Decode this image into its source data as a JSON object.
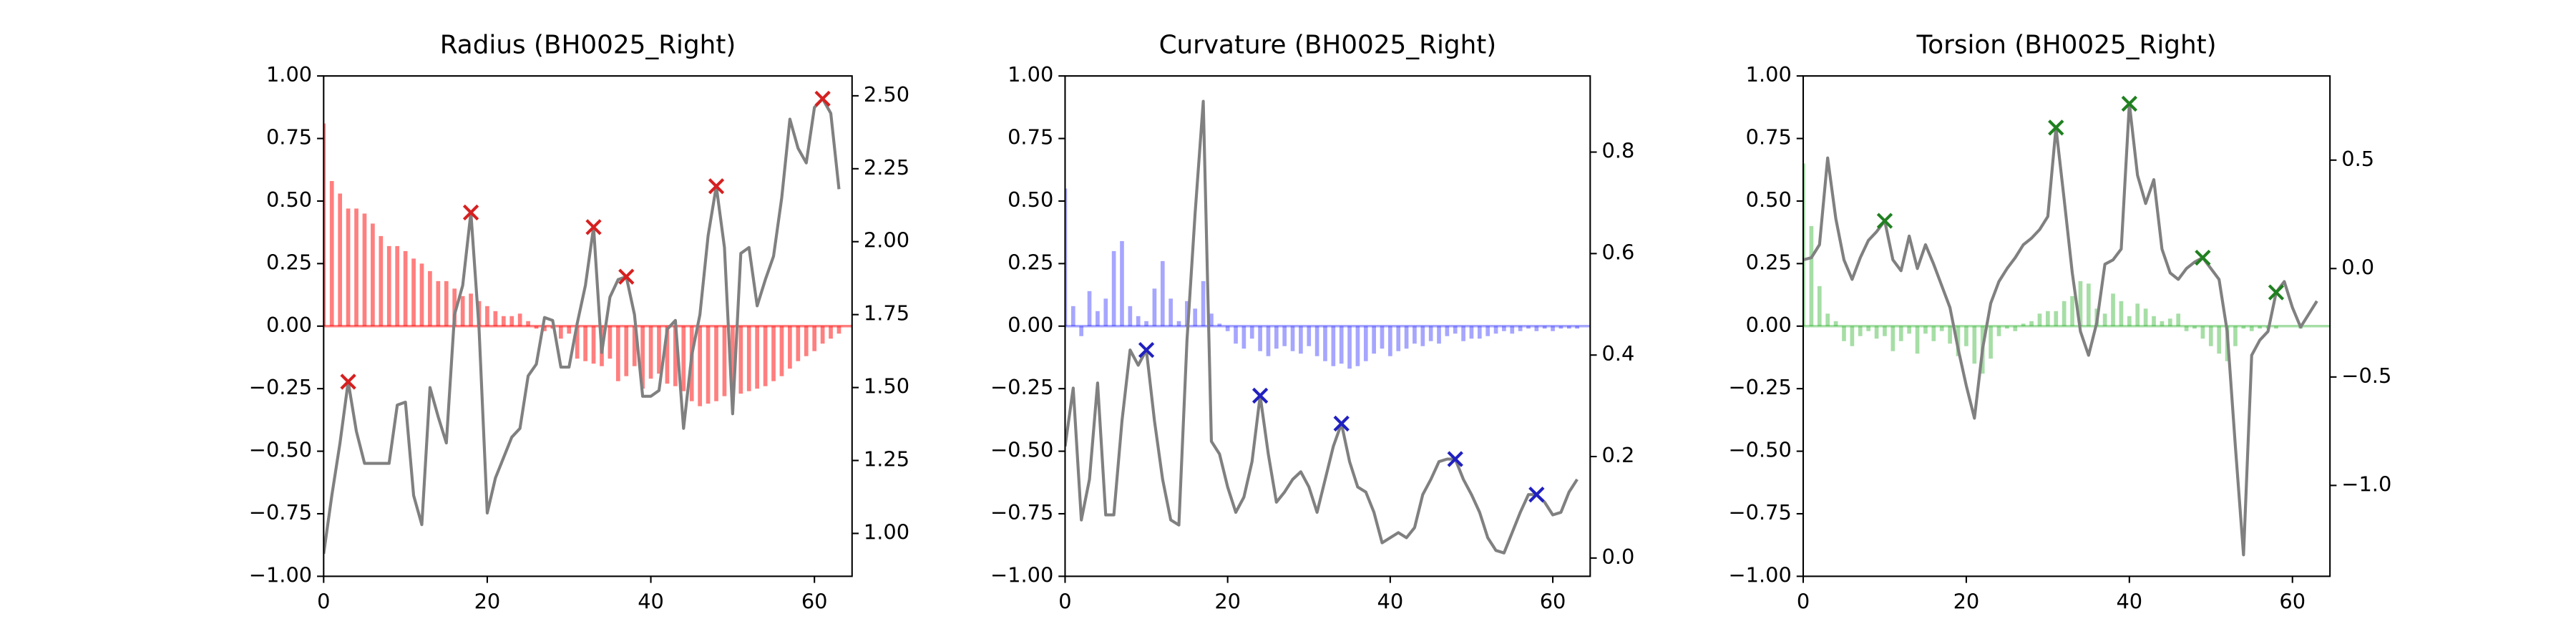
{
  "chart_data": [
    {
      "type": "combo",
      "title": "Radius (BH0025_Right)",
      "x": [
        0,
        1,
        2,
        3,
        4,
        5,
        6,
        7,
        8,
        9,
        10,
        11,
        12,
        13,
        14,
        15,
        16,
        17,
        18,
        19,
        20,
        21,
        22,
        23,
        24,
        25,
        26,
        27,
        28,
        29,
        30,
        31,
        32,
        33,
        34,
        35,
        36,
        37,
        38,
        39,
        40,
        41,
        42,
        43,
        44,
        45,
        46,
        47,
        48,
        49,
        50,
        51,
        52,
        53,
        54,
        55,
        56,
        57,
        58,
        59,
        60,
        61,
        62,
        63
      ],
      "xlim": [
        0,
        64.6
      ],
      "xticks": [
        0,
        20,
        40,
        60
      ],
      "ylim": [
        -1,
        1
      ],
      "yticks": [
        {
          "value": -1,
          "label": "−1.00"
        },
        {
          "value": -0.75,
          "label": "−0.75"
        },
        {
          "value": -0.5,
          "label": "−0.50"
        },
        {
          "value": -0.25,
          "label": "−0.25"
        },
        {
          "value": 0,
          "label": "0.00"
        },
        {
          "value": 0.25,
          "label": "0.25"
        },
        {
          "value": 0.5,
          "label": "0.50"
        },
        {
          "value": 0.75,
          "label": "0.75"
        },
        {
          "value": 1,
          "label": "1.00"
        }
      ],
      "y2lim": [
        0.853,
        2.568
      ],
      "y2ticks": [
        {
          "value": 1,
          "label": "1.00"
        },
        {
          "value": 1.25,
          "label": "1.25"
        },
        {
          "value": 1.5,
          "label": "1.50"
        },
        {
          "value": 1.75,
          "label": "1.75"
        },
        {
          "value": 2,
          "label": "2.00"
        },
        {
          "value": 2.25,
          "label": "2.25"
        },
        {
          "value": 2.5,
          "label": "2.50"
        }
      ],
      "series": [
        {
          "type": "bar",
          "color": "#ff0000",
          "alpha": 0.5,
          "values": [
            0.81,
            0.58,
            0.53,
            0.47,
            0.47,
            0.45,
            0.41,
            0.36,
            0.32,
            0.32,
            0.3,
            0.27,
            0.25,
            0.22,
            0.18,
            0.18,
            0.15,
            0.12,
            0.13,
            0.1,
            0.08,
            0.06,
            0.04,
            0.04,
            0.05,
            0.02,
            -0.01,
            -0.02,
            -0.01,
            -0.05,
            -0.03,
            -0.13,
            -0.14,
            -0.15,
            -0.16,
            -0.13,
            -0.22,
            -0.2,
            -0.16,
            -0.25,
            -0.21,
            -0.19,
            -0.23,
            -0.24,
            -0.26,
            -0.3,
            -0.32,
            -0.31,
            -0.3,
            -0.28,
            -0.28,
            -0.27,
            -0.26,
            -0.25,
            -0.24,
            -0.22,
            -0.2,
            -0.17,
            -0.14,
            -0.12,
            -0.1,
            -0.07,
            -0.05,
            -0.03
          ]
        },
        {
          "type": "line",
          "axis": "y2",
          "color": "#808080",
          "values": [
            0.93,
            1.13,
            1.31,
            1.52,
            1.35,
            1.24,
            1.24,
            1.24,
            1.24,
            1.44,
            1.45,
            1.13,
            1.03,
            1.5,
            1.4,
            1.31,
            1.75,
            1.85,
            2.1,
            1.7,
            1.07,
            1.19,
            1.26,
            1.33,
            1.36,
            1.54,
            1.58,
            1.74,
            1.73,
            1.57,
            1.57,
            1.72,
            1.85,
            2.05,
            1.62,
            1.81,
            1.87,
            1.88,
            1.75,
            1.47,
            1.47,
            1.49,
            1.7,
            1.73,
            1.36,
            1.61,
            1.75,
            2.02,
            2.19,
            1.98,
            1.41,
            1.96,
            1.98,
            1.78,
            1.87,
            1.95,
            2.15,
            2.42,
            2.32,
            2.27,
            2.46,
            2.49,
            2.44,
            2.18
          ]
        },
        {
          "type": "marker",
          "axis": "y2",
          "color": "#d62020",
          "x": [
            3,
            18,
            33,
            37,
            48,
            61
          ],
          "values": [
            1.52,
            2.1,
            2.05,
            1.88,
            2.19,
            2.49
          ]
        }
      ]
    },
    {
      "type": "combo",
      "title": "Curvature (BH0025_Right)",
      "x": [
        0,
        1,
        2,
        3,
        4,
        5,
        6,
        7,
        8,
        9,
        10,
        11,
        12,
        13,
        14,
        15,
        16,
        17,
        18,
        19,
        20,
        21,
        22,
        23,
        24,
        25,
        26,
        27,
        28,
        29,
        30,
        31,
        32,
        33,
        34,
        35,
        36,
        37,
        38,
        39,
        40,
        41,
        42,
        43,
        44,
        45,
        46,
        47,
        48,
        49,
        50,
        51,
        52,
        53,
        54,
        55,
        56,
        57,
        58,
        59,
        60,
        61,
        62,
        63
      ],
      "xlim": [
        0,
        64.6
      ],
      "xticks": [
        0,
        20,
        40,
        60
      ],
      "ylim": [
        -1,
        1
      ],
      "yticks": [
        {
          "value": -1,
          "label": "−1.00"
        },
        {
          "value": -0.75,
          "label": "−0.75"
        },
        {
          "value": -0.5,
          "label": "−0.50"
        },
        {
          "value": -0.25,
          "label": "−0.25"
        },
        {
          "value": 0,
          "label": "0.00"
        },
        {
          "value": 0.25,
          "label": "0.25"
        },
        {
          "value": 0.5,
          "label": "0.50"
        },
        {
          "value": 0.75,
          "label": "0.75"
        },
        {
          "value": 1,
          "label": "1.00"
        }
      ],
      "y2lim": [
        -0.036,
        0.95
      ],
      "y2ticks": [
        {
          "value": 0,
          "label": "0.0"
        },
        {
          "value": 0.2,
          "label": "0.2"
        },
        {
          "value": 0.4,
          "label": "0.4"
        },
        {
          "value": 0.6,
          "label": "0.6"
        },
        {
          "value": 0.8,
          "label": "0.8"
        }
      ],
      "series": [
        {
          "type": "bar",
          "color": "#0000ff",
          "alpha": 0.35,
          "values": [
            0.55,
            0.08,
            -0.04,
            0.14,
            0.06,
            0.11,
            0.3,
            0.34,
            0.08,
            0.04,
            0.02,
            0.15,
            0.26,
            0.11,
            0.02,
            0.1,
            0.07,
            0.18,
            0.05,
            0.01,
            -0.02,
            -0.07,
            -0.09,
            -0.05,
            -0.1,
            -0.12,
            -0.09,
            -0.08,
            -0.1,
            -0.11,
            -0.08,
            -0.12,
            -0.14,
            -0.16,
            -0.15,
            -0.17,
            -0.16,
            -0.14,
            -0.11,
            -0.09,
            -0.12,
            -0.1,
            -0.09,
            -0.07,
            -0.08,
            -0.06,
            -0.07,
            -0.04,
            -0.03,
            -0.06,
            -0.05,
            -0.05,
            -0.04,
            -0.03,
            -0.02,
            -0.03,
            -0.02,
            -0.01,
            -0.02,
            -0.01,
            -0.02,
            -0.01,
            -0.01,
            -0.01
          ]
        },
        {
          "type": "line",
          "axis": "y2",
          "color": "#808080",
          "values": [
            0.22,
            0.335,
            0.075,
            0.155,
            0.345,
            0.085,
            0.085,
            0.27,
            0.41,
            0.38,
            0.41,
            0.27,
            0.155,
            0.075,
            0.065,
            0.43,
            0.68,
            0.9,
            0.23,
            0.205,
            0.14,
            0.09,
            0.12,
            0.19,
            0.32,
            0.205,
            0.11,
            0.13,
            0.155,
            0.17,
            0.14,
            0.09,
            0.155,
            0.22,
            0.265,
            0.19,
            0.14,
            0.13,
            0.09,
            0.03,
            0.04,
            0.05,
            0.04,
            0.06,
            0.125,
            0.155,
            0.19,
            0.195,
            0.195,
            0.155,
            0.125,
            0.09,
            0.04,
            0.015,
            0.01,
            0.05,
            0.09,
            0.125,
            0.125,
            0.11,
            0.085,
            0.09,
            0.13,
            0.155
          ]
        },
        {
          "type": "marker",
          "axis": "y2",
          "color": "#2020c0",
          "x": [
            10,
            24,
            34,
            48,
            58
          ],
          "values": [
            0.41,
            0.32,
            0.265,
            0.195,
            0.125
          ]
        }
      ]
    },
    {
      "type": "combo",
      "title": "Torsion (BH0025_Right)",
      "x": [
        0,
        1,
        2,
        3,
        4,
        5,
        6,
        7,
        8,
        9,
        10,
        11,
        12,
        13,
        14,
        15,
        16,
        17,
        18,
        19,
        20,
        21,
        22,
        23,
        24,
        25,
        26,
        27,
        28,
        29,
        30,
        31,
        32,
        33,
        34,
        35,
        36,
        37,
        38,
        39,
        40,
        41,
        42,
        43,
        44,
        45,
        46,
        47,
        48,
        49,
        50,
        51,
        52,
        53,
        54,
        55,
        56,
        57,
        58,
        59,
        60,
        61,
        62,
        63
      ],
      "xlim": [
        0,
        64.6
      ],
      "xticks": [
        0,
        20,
        40,
        60
      ],
      "ylim": [
        -1,
        1
      ],
      "yticks": [
        {
          "value": -1,
          "label": "−1.00"
        },
        {
          "value": -0.75,
          "label": "−0.75"
        },
        {
          "value": -0.5,
          "label": "−0.50"
        },
        {
          "value": -0.25,
          "label": "−0.25"
        },
        {
          "value": 0,
          "label": "0.00"
        },
        {
          "value": 0.25,
          "label": "0.25"
        },
        {
          "value": 0.5,
          "label": "0.50"
        },
        {
          "value": 0.75,
          "label": "0.75"
        },
        {
          "value": 1,
          "label": "1.00"
        }
      ],
      "y2lim": [
        -1.419,
        0.888
      ],
      "y2ticks": [
        {
          "value": -1,
          "label": "−1.0"
        },
        {
          "value": -0.5,
          "label": "−0.5"
        },
        {
          "value": 0,
          "label": "0.0"
        },
        {
          "value": 0.5,
          "label": "0.5"
        }
      ],
      "series": [
        {
          "type": "bar",
          "color": "#00a000",
          "alpha": 0.35,
          "values": [
            0.65,
            0.4,
            0.16,
            0.05,
            0.02,
            -0.06,
            -0.08,
            -0.04,
            -0.02,
            -0.05,
            -0.04,
            -0.1,
            -0.06,
            -0.03,
            -0.11,
            -0.03,
            -0.06,
            -0.02,
            -0.07,
            -0.12,
            -0.08,
            -0.15,
            -0.19,
            -0.13,
            -0.04,
            -0.01,
            -0.02,
            0.01,
            0.02,
            0.05,
            0.06,
            0.06,
            0.1,
            0.12,
            0.18,
            0.17,
            0.07,
            0.05,
            0.13,
            0.1,
            0.04,
            0.09,
            0.07,
            0.04,
            0.02,
            0.03,
            0.05,
            -0.02,
            -0.01,
            -0.05,
            -0.08,
            -0.11,
            -0.14,
            -0.08,
            -0.01,
            -0.02,
            -0.01,
            -0.01,
            -0.01,
            0,
            0,
            -0.01,
            0,
            0
          ]
        },
        {
          "type": "line",
          "axis": "y2",
          "color": "#808080",
          "values": [
            0.04,
            0.05,
            0.11,
            0.51,
            0.23,
            0.04,
            -0.05,
            0.05,
            0.13,
            0.17,
            0.22,
            0.04,
            -0.01,
            0.15,
            0,
            0.11,
            0.02,
            -0.08,
            -0.18,
            -0.37,
            -0.54,
            -0.69,
            -0.37,
            -0.16,
            -0.06,
            0,
            0.05,
            0.11,
            0.14,
            0.18,
            0.24,
            0.65,
            0.32,
            -0.02,
            -0.29,
            -0.4,
            -0.25,
            0.02,
            0.04,
            0.09,
            0.76,
            0.43,
            0.3,
            0.41,
            0.09,
            -0.02,
            -0.05,
            0,
            0.03,
            0.05,
            0,
            -0.05,
            -0.29,
            -0.82,
            -1.32,
            -0.4,
            -0.33,
            -0.29,
            -0.11,
            -0.06,
            -0.18,
            -0.27,
            -0.21,
            -0.15
          ]
        },
        {
          "type": "marker",
          "axis": "y2",
          "color": "#208020",
          "x": [
            10,
            31,
            40,
            49,
            58
          ],
          "values": [
            0.22,
            0.65,
            0.76,
            0.05,
            -0.11
          ]
        }
      ]
    }
  ]
}
